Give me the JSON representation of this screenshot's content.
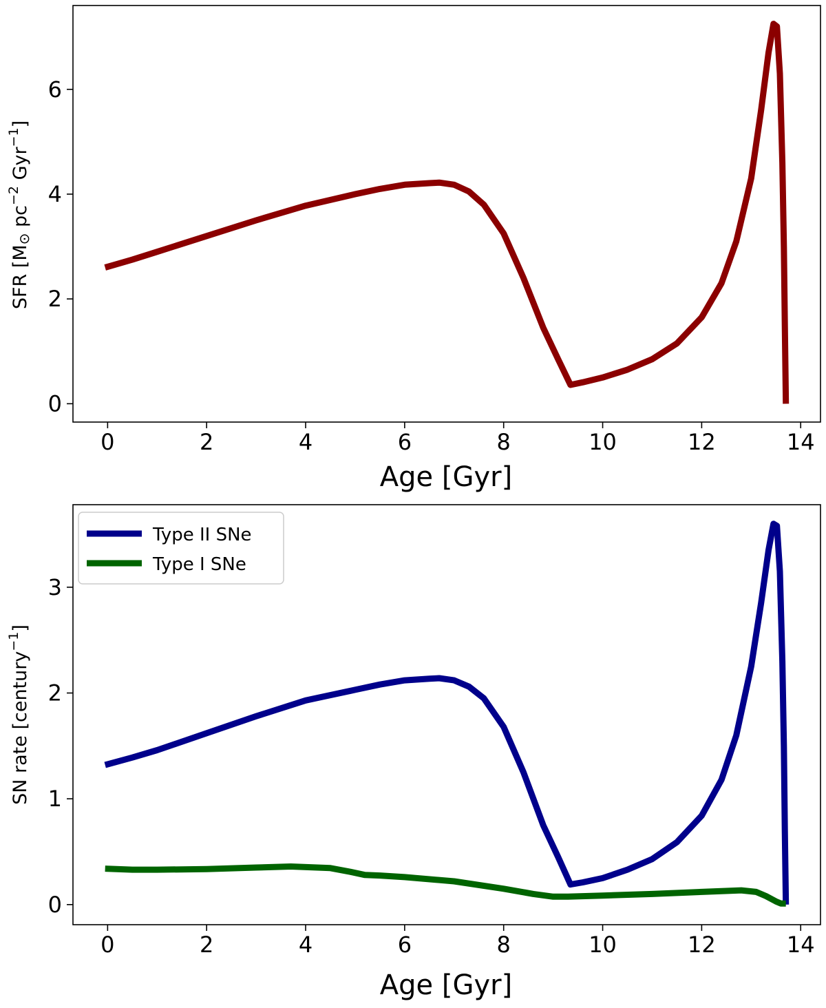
{
  "chart_data": [
    {
      "type": "line",
      "xlabel": "Age [Gyr]",
      "ylabel_main": "SFR [M",
      "ylabel_sun": "⊙",
      "ylabel_mid": " pc",
      "ylabel_sup1": "−2",
      "ylabel_mid2": " Gyr",
      "ylabel_sup2": "−1",
      "ylabel_end": "]",
      "xlim": [
        -0.7,
        14.4
      ],
      "ylim": [
        -0.35,
        7.6
      ],
      "xticks": [
        0,
        2,
        4,
        6,
        8,
        10,
        12,
        14
      ],
      "yticks": [
        0,
        2,
        4,
        6
      ],
      "series": [
        {
          "name": "SFR",
          "color": "#8b0000",
          "x": [
            -0.05,
            0.5,
            1,
            2,
            3,
            4,
            5,
            5.5,
            6,
            6.5,
            6.7,
            7,
            7.3,
            7.6,
            8,
            8.4,
            8.8,
            9.1,
            9.35,
            9.6,
            10,
            10.5,
            11,
            11.5,
            12,
            12.4,
            12.7,
            13,
            13.2,
            13.35,
            13.45,
            13.52,
            13.58,
            13.63,
            13.66,
            13.68,
            13.7
          ],
          "y": [
            2.6,
            2.75,
            2.9,
            3.2,
            3.5,
            3.78,
            4.0,
            4.1,
            4.18,
            4.21,
            4.22,
            4.18,
            4.05,
            3.8,
            3.25,
            2.4,
            1.45,
            0.85,
            0.36,
            0.41,
            0.5,
            0.65,
            0.85,
            1.15,
            1.65,
            2.3,
            3.1,
            4.3,
            5.6,
            6.7,
            7.25,
            7.2,
            6.3,
            4.6,
            3.0,
            1.5,
            0.0
          ]
        }
      ]
    },
    {
      "type": "line",
      "xlabel": "Age [Gyr]",
      "ylabel_main": "SN rate [century",
      "ylabel_sup": "−1",
      "ylabel_end": "]",
      "xlim": [
        -0.7,
        14.4
      ],
      "ylim": [
        -0.19,
        3.78
      ],
      "xticks": [
        0,
        2,
        4,
        6,
        8,
        10,
        12,
        14
      ],
      "yticks": [
        0,
        1,
        2,
        3
      ],
      "legend_position": "top-left",
      "series": [
        {
          "name": "Type II SNe",
          "color": "#00008b",
          "x": [
            -0.05,
            0.5,
            1,
            2,
            3,
            4,
            5,
            5.5,
            6,
            6.5,
            6.7,
            7,
            7.3,
            7.6,
            8,
            8.4,
            8.8,
            9.1,
            9.35,
            9.6,
            10,
            10.5,
            11,
            11.5,
            12,
            12.4,
            12.7,
            13,
            13.2,
            13.35,
            13.45,
            13.52,
            13.58,
            13.63,
            13.66,
            13.68,
            13.7
          ],
          "y": [
            1.32,
            1.39,
            1.46,
            1.62,
            1.78,
            1.93,
            2.03,
            2.08,
            2.12,
            2.135,
            2.14,
            2.12,
            2.06,
            1.95,
            1.68,
            1.25,
            0.75,
            0.45,
            0.19,
            0.21,
            0.25,
            0.33,
            0.43,
            0.59,
            0.84,
            1.18,
            1.6,
            2.25,
            2.85,
            3.35,
            3.6,
            3.58,
            3.15,
            2.3,
            1.5,
            0.7,
            0.0
          ]
        },
        {
          "name": "Type I SNe",
          "color": "#006400",
          "x": [
            -0.05,
            0.5,
            1,
            2,
            3,
            3.7,
            4.5,
            4.9,
            5.2,
            5.5,
            6,
            7,
            8,
            8.6,
            9.0,
            9.3,
            10,
            11,
            12,
            12.8,
            13.1,
            13.3,
            13.5,
            13.6,
            13.7
          ],
          "y": [
            0.34,
            0.33,
            0.33,
            0.335,
            0.35,
            0.36,
            0.345,
            0.31,
            0.28,
            0.275,
            0.26,
            0.22,
            0.15,
            0.1,
            0.075,
            0.075,
            0.085,
            0.1,
            0.12,
            0.135,
            0.12,
            0.08,
            0.03,
            0.01,
            0.01
          ]
        }
      ]
    }
  ]
}
